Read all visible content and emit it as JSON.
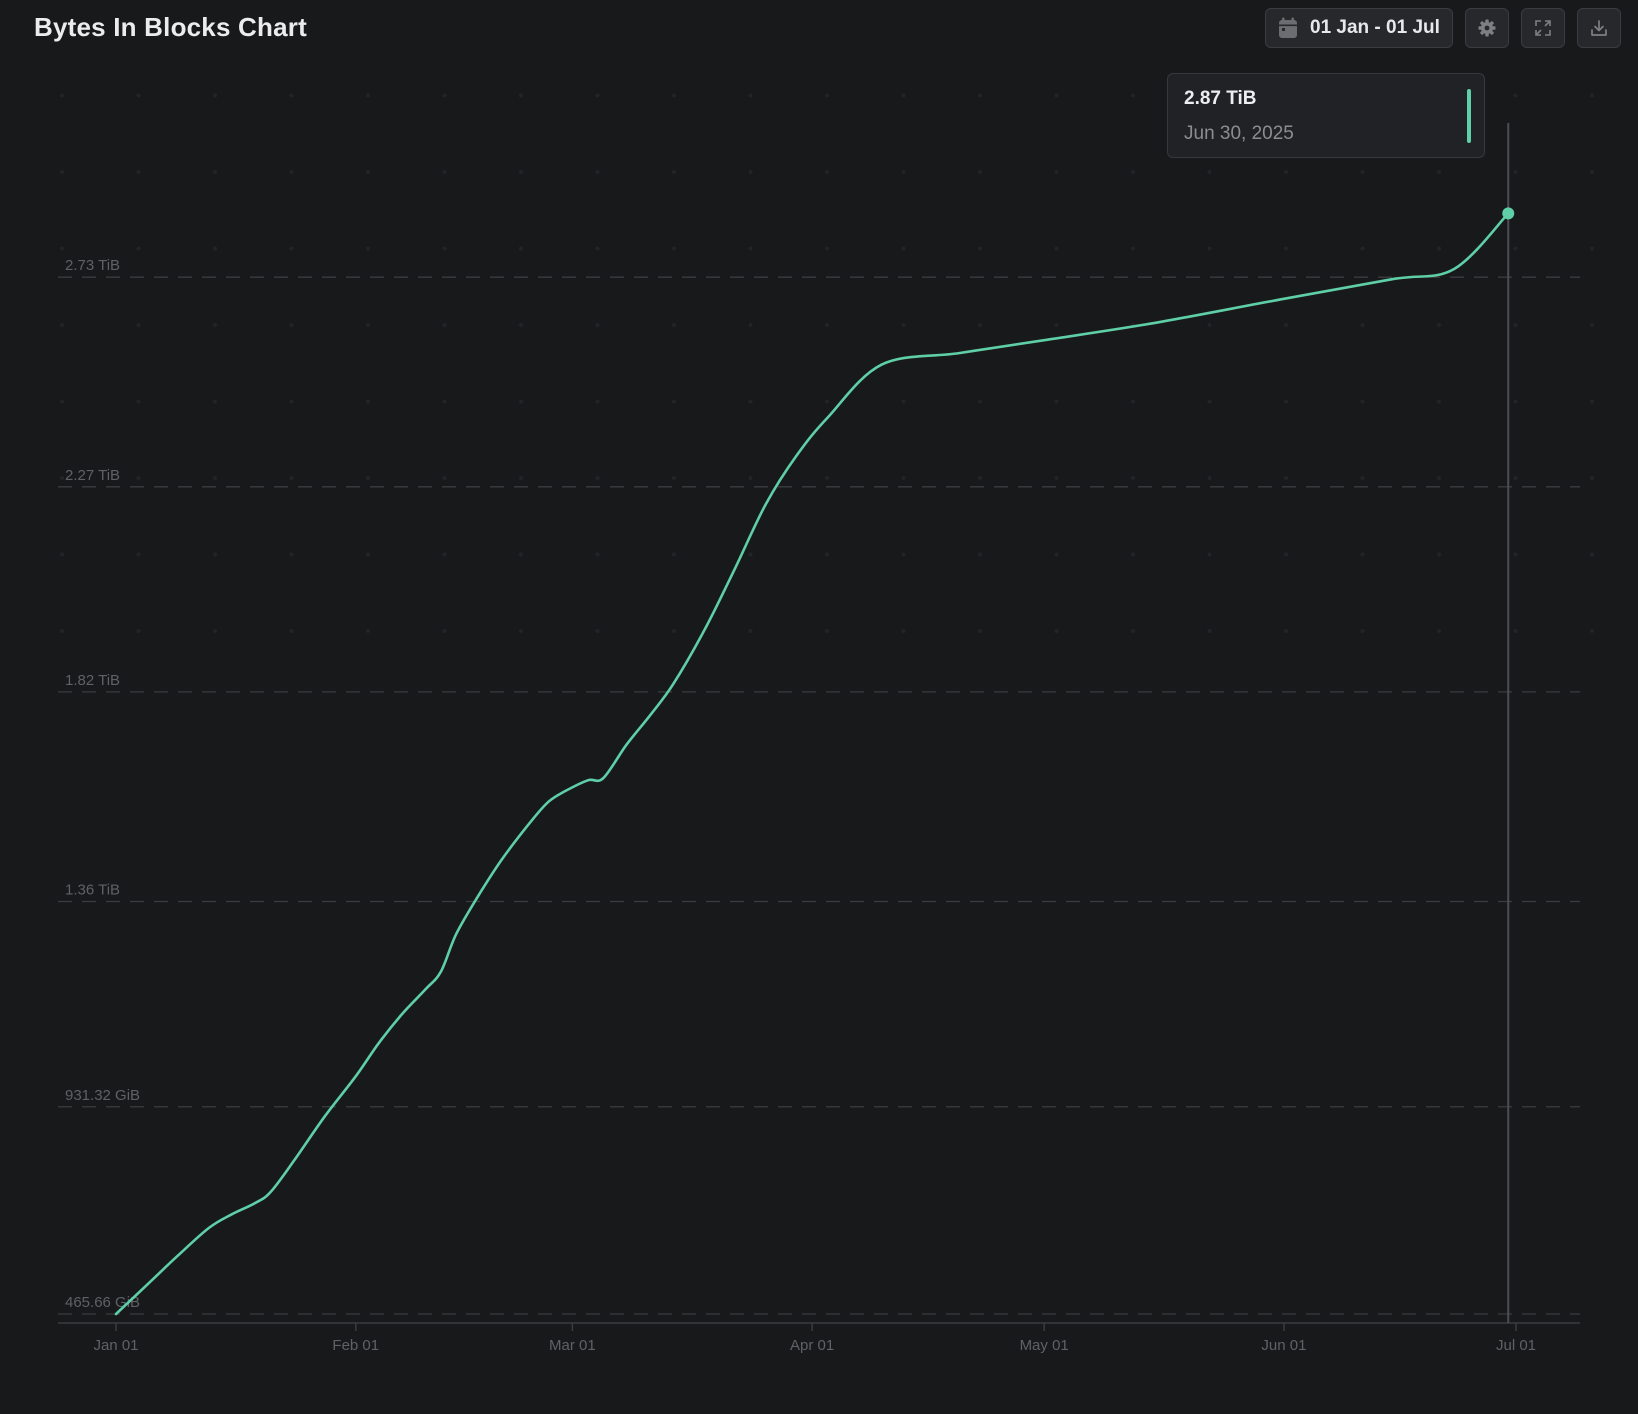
{
  "header": {
    "title": "Bytes In Blocks Chart",
    "date_range_label": "01 Jan - 01 Jul",
    "date_range_icon": "calendar-icon",
    "settings_icon": "gear-icon",
    "fullscreen_icon": "expand-icon",
    "download_icon": "download-icon"
  },
  "tooltip": {
    "value": "2.87 TiB",
    "date": "Jun 30, 2025",
    "color": "#5ecfa6"
  },
  "colors": {
    "background": "#18191b",
    "line": "#5ecfa6",
    "grid": "#3a3c40",
    "tick_text": "#5f6166"
  },
  "chart_data": {
    "type": "line",
    "title": "Bytes In Blocks Chart",
    "xlabel": "",
    "ylabel": "",
    "x_axis": {
      "type": "date",
      "range": [
        "2025-01-01",
        "2025-07-01"
      ],
      "ticks": [
        {
          "date": "2025-01-01",
          "label": "Jan 01"
        },
        {
          "date": "2025-02-01",
          "label": "Feb 01"
        },
        {
          "date": "2025-03-01",
          "label": "Mar 01"
        },
        {
          "date": "2025-04-01",
          "label": "Apr 01"
        },
        {
          "date": "2025-05-01",
          "label": "May 01"
        },
        {
          "date": "2025-06-01",
          "label": "Jun 01"
        },
        {
          "date": "2025-07-01",
          "label": "Jul 01"
        }
      ]
    },
    "y_axis": {
      "unit": "GiB",
      "range": [
        465.66,
        2980.23
      ],
      "ticks": [
        {
          "value": 465.66,
          "label": "465.66 GiB"
        },
        {
          "value": 931.32,
          "label": "931.32 GiB"
        },
        {
          "value": 1392.64,
          "label": "1.36 TiB"
        },
        {
          "value": 1863.68,
          "label": "1.82 TiB"
        },
        {
          "value": 2324.48,
          "label": "2.27 TiB"
        },
        {
          "value": 2795.52,
          "label": "2.73 TiB"
        }
      ]
    },
    "grid": true,
    "legend": "none",
    "series": [
      {
        "color": "#5ecfa6",
        "points": [
          [
            "2025-01-01",
            465.66
          ],
          [
            "2025-01-05",
            531
          ],
          [
            "2025-01-09",
            597
          ],
          [
            "2025-01-13",
            659
          ],
          [
            "2025-01-16",
            690
          ],
          [
            "2025-01-19",
            715
          ],
          [
            "2025-01-21",
            740
          ],
          [
            "2025-01-24",
            810
          ],
          [
            "2025-01-28",
            910
          ],
          [
            "2025-02-01",
            1000
          ],
          [
            "2025-02-04",
            1075
          ],
          [
            "2025-02-07",
            1140
          ],
          [
            "2025-02-10",
            1195
          ],
          [
            "2025-02-12",
            1235
          ],
          [
            "2025-02-14",
            1320
          ],
          [
            "2025-02-17",
            1410
          ],
          [
            "2025-02-20",
            1490
          ],
          [
            "2025-02-24",
            1580
          ],
          [
            "2025-02-26",
            1618
          ],
          [
            "2025-02-28",
            1640
          ],
          [
            "2025-03-03",
            1665
          ],
          [
            "2025-03-05",
            1670
          ],
          [
            "2025-03-08",
            1745
          ],
          [
            "2025-03-11",
            1810
          ],
          [
            "2025-03-14",
            1880
          ],
          [
            "2025-03-18",
            2000
          ],
          [
            "2025-03-22",
            2140
          ],
          [
            "2025-03-26",
            2285
          ],
          [
            "2025-03-30",
            2395
          ],
          [
            "2025-04-03",
            2480
          ],
          [
            "2025-04-10",
            2599
          ],
          [
            "2025-04-20",
            2625
          ],
          [
            "2025-05-01",
            2654
          ],
          [
            "2025-05-15",
            2692
          ],
          [
            "2025-06-01",
            2747
          ],
          [
            "2025-06-15",
            2791
          ],
          [
            "2025-06-23",
            2814
          ],
          [
            "2025-06-30",
            2938.88
          ]
        ]
      }
    ],
    "highlight": {
      "x": "2025-06-30",
      "y": 2938.88,
      "label": "2.87 TiB"
    }
  }
}
